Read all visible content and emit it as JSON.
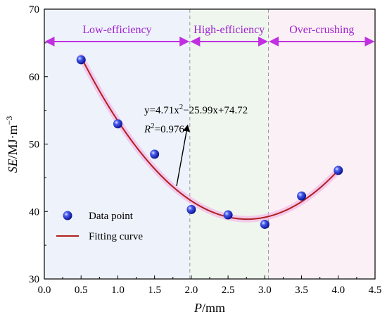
{
  "chart_data": {
    "type": "scatter",
    "xlabel": {
      "italic": "P",
      "rest": "/mm"
    },
    "ylabel": {
      "italic": "SE",
      "rest": "/MJ·m",
      "sup": "−3"
    },
    "xlim": [
      0.0,
      4.5
    ],
    "ylim": [
      30,
      70
    ],
    "xticks": [
      0.0,
      0.5,
      1.0,
      1.5,
      2.0,
      2.5,
      3.0,
      3.5,
      4.0,
      4.5
    ],
    "yticks": [
      30,
      40,
      50,
      60,
      70
    ],
    "grid": false,
    "regions": [
      {
        "label": "Low-efficiency",
        "x_start": 0.0,
        "x_end": 1.98,
        "color": "#eef3fb"
      },
      {
        "label": "High-efficiency",
        "x_start": 1.98,
        "x_end": 3.05,
        "color": "#eef6ee"
      },
      {
        "label": "Over-crushing",
        "x_start": 3.05,
        "x_end": 4.5,
        "color": "#fbf0f5"
      }
    ],
    "region_arrow_color": "#c030e0",
    "region_label_color": "#a020d0",
    "region_arrow_y": 65.2,
    "series": [
      {
        "name": "Data point",
        "type": "scatter",
        "color": "#2233dd",
        "x": [
          0.5,
          1.0,
          1.5,
          2.0,
          2.5,
          3.0,
          3.5,
          4.0
        ],
        "y": [
          62.5,
          53.0,
          48.5,
          40.3,
          39.5,
          38.1,
          42.3,
          46.1
        ]
      },
      {
        "name": "Fitting curve",
        "type": "line",
        "color": "#b02020",
        "coefficients": {
          "a": 4.71,
          "b": -25.99,
          "c": 74.72
        },
        "x_range": [
          0.5,
          4.0
        ]
      }
    ],
    "annotation": {
      "equation": {
        "p1": "y=4.71x",
        "sup1": "2",
        "p2": "−25.99x+74.72"
      },
      "r2": {
        "italic": "R",
        "sup": "2",
        "rest": "=0.976"
      },
      "arrow_from": [
        1.8,
        43.8
      ],
      "arrow_to": [
        1.95,
        52.8
      ]
    },
    "legend": {
      "placement": "bottom-left",
      "entries": [
        {
          "label": "Data point"
        },
        {
          "label": "Fitting curve"
        }
      ]
    }
  }
}
